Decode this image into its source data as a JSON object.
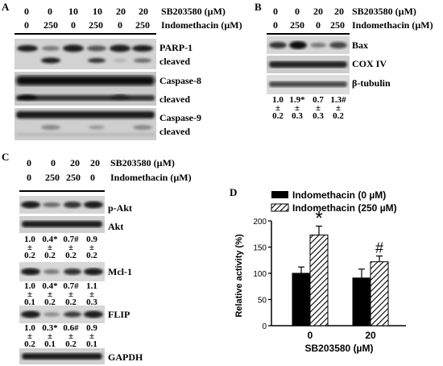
{
  "panelA": {
    "letter": "A",
    "sb_label": "SB203580 (µM)",
    "indo_label": "Indomethacin (µM)",
    "sb_values": [
      "0",
      "0",
      "10",
      "10",
      "20",
      "20"
    ],
    "indo_values": [
      "0",
      "250",
      "0",
      "250",
      "0",
      "250"
    ],
    "blots": [
      "PARP-1",
      "cleaved",
      "Caspase-8",
      "cleaved",
      "Caspase-9",
      "cleaved"
    ]
  },
  "panelB": {
    "letter": "B",
    "sb_label": "SB203580 (µM)",
    "indo_label": "Indomethacin (µM)",
    "sb_values": [
      "0",
      "0",
      "20",
      "20"
    ],
    "indo_values": [
      "0",
      "250",
      "0",
      "250"
    ],
    "blots": [
      "Bax",
      "COX IV",
      "β-tubulin"
    ],
    "quant": [
      {
        "mean": "1.0",
        "pm": "±",
        "sd": "0.2"
      },
      {
        "mean": "1.9*",
        "pm": "±",
        "sd": "0.3"
      },
      {
        "mean": "0.7",
        "pm": "±",
        "sd": "0.3"
      },
      {
        "mean": "1.3#",
        "pm": "±",
        "sd": "0.2"
      }
    ]
  },
  "panelC": {
    "letter": "C",
    "sb_label": "SB203580 (µM)",
    "indo_label": "Indomethacin (µM)",
    "sb_values": [
      "0",
      "0",
      "20",
      "20"
    ],
    "indo_values": [
      "0",
      "250",
      "250",
      "0"
    ],
    "blots": [
      "p-Akt",
      "Akt",
      "Mcl-1",
      "FLIP",
      "GAPDH"
    ],
    "quant_akt": [
      {
        "mean": "1.0",
        "pm": "±",
        "sd": "0.2"
      },
      {
        "mean": "0.4*",
        "pm": "±",
        "sd": "0.2"
      },
      {
        "mean": "0.7#",
        "pm": "±",
        "sd": "0.2"
      },
      {
        "mean": "0.9",
        "pm": "±",
        "sd": "0.2"
      }
    ],
    "quant_mcl": [
      {
        "mean": "1.0",
        "pm": "±",
        "sd": "0.1"
      },
      {
        "mean": "0.4*",
        "pm": "±",
        "sd": "0.2"
      },
      {
        "mean": "0.7#",
        "pm": "±",
        "sd": "0.2"
      },
      {
        "mean": "1.1",
        "pm": "±",
        "sd": "0.3"
      }
    ],
    "quant_flip": [
      {
        "mean": "1.0",
        "pm": "±",
        "sd": "0.2"
      },
      {
        "mean": "0.3*",
        "pm": "±",
        "sd": "0.1"
      },
      {
        "mean": "0.6#",
        "pm": "±",
        "sd": "0.2"
      },
      {
        "mean": "0.9",
        "pm": "±",
        "sd": "0.1"
      }
    ]
  },
  "panelD": {
    "letter": "D",
    "legend": [
      "Indomethacin (0 µM)",
      "Indomethacin (250 µM)"
    ],
    "ylabel": "Relative activity (%)",
    "xlabel": "SB203580 (µM)"
  },
  "chart_data": {
    "type": "bar",
    "categories": [
      "0",
      "20"
    ],
    "series": [
      {
        "name": "Indomethacin (0 µM)",
        "values": [
          100,
          91
        ],
        "errors": [
          12,
          17
        ],
        "fill": "solid-black"
      },
      {
        "name": "Indomethacin (250 µM)",
        "values": [
          173,
          122
        ],
        "errors": [
          17,
          11
        ],
        "fill": "hatched"
      }
    ],
    "annotations": [
      "*",
      "#"
    ],
    "ylabel": "Relative activity (%)",
    "xlabel": "SB203580 (µM)",
    "ylim": [
      0,
      200
    ],
    "yticks": [
      0,
      50,
      100,
      150,
      200
    ],
    "grid": false,
    "legend_position": "top"
  },
  "colors": {
    "band": "#1a1a1a",
    "membrane": "#d4d4d4",
    "bar_solid": "#000000"
  }
}
